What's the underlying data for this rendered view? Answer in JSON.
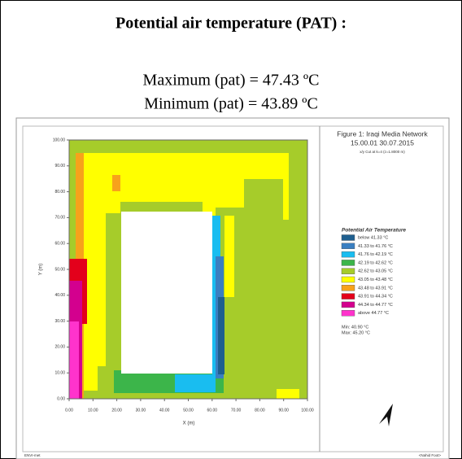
{
  "header": {
    "title": "Potential air temperature (PAT) :"
  },
  "stats": [
    "Maximum (pat) = 47.43 ºC",
    "Minimum  (pat) = 43.89 ºC"
  ],
  "figure": {
    "title": "Figure 1: Iraqi Media Network",
    "timestamp": "15.00.01 30.07.2015",
    "cut": "x/y Cut at k=4 (z=1.8000 m)",
    "legend_title": "Potential Air Temperature",
    "legend": [
      {
        "label": "below 41.33 °C",
        "color": "#1f5f8f"
      },
      {
        "label": "41.33 to 41.76 °C",
        "color": "#3a7fc1"
      },
      {
        "label": "41.76 to 42.19 °C",
        "color": "#19bdf0"
      },
      {
        "label": "42.19 to 42.62 °C",
        "color": "#3cb54a"
      },
      {
        "label": "42.62 to 43.05 °C",
        "color": "#a6cc2a"
      },
      {
        "label": "43.05 to 43.48 °C",
        "color": "#ffff00"
      },
      {
        "label": "43.48 to 43.91 °C",
        "color": "#f7a21b"
      },
      {
        "label": "43.91 to 44.34 °C",
        "color": "#e3001b"
      },
      {
        "label": "44.34 to 44.77 °C",
        "color": "#d3008e"
      },
      {
        "label": "above 44.77 °C",
        "color": "#ff33cc"
      }
    ],
    "min": "Min: 40.90 °C",
    "max": "Max: 45.20 °C",
    "xticks": [
      "0.00",
      "10.00",
      "20.00",
      "30.00",
      "40.00",
      "50.00",
      "60.00",
      "70.00",
      "80.00",
      "90.00",
      "100.00"
    ],
    "yticks": [
      "0.00",
      "10.00",
      "20.00",
      "30.00",
      "40.00",
      "50.00",
      "60.00",
      "70.00",
      "80.00",
      "90.00",
      "100.00"
    ],
    "x_label": "X (m)",
    "y_label": "Y (m)",
    "footer_left": "ENVI-met",
    "footer_right": "<Nahid Foot>"
  }
}
